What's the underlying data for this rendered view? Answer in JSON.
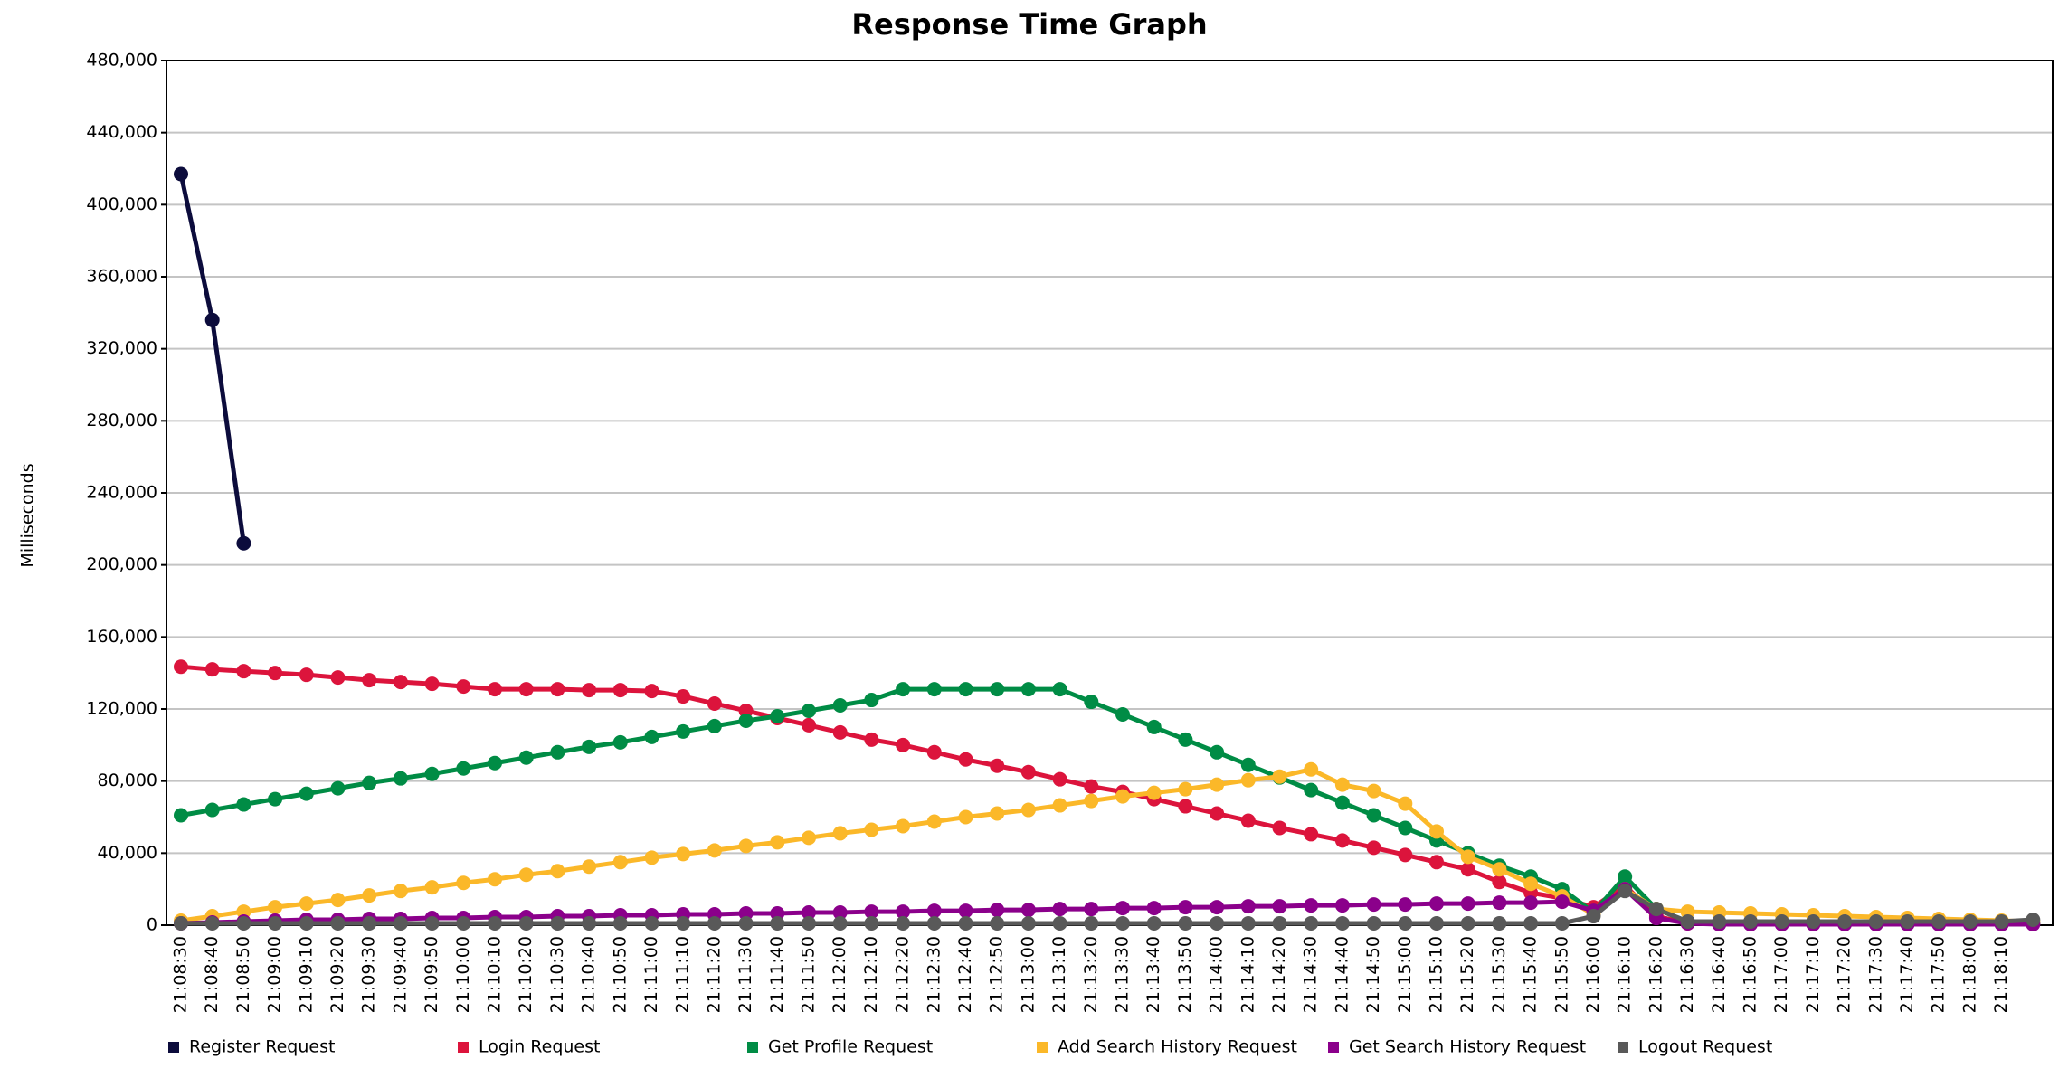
{
  "chart_data": {
    "type": "line",
    "title": "Response Time Graph",
    "y_label": "Milliseconds",
    "categories": [
      "21:08:30",
      "21:08:40",
      "21:08:50",
      "21:09:00",
      "21:09:10",
      "21:09:20",
      "21:09:30",
      "21:09:40",
      "21:09:50",
      "21:10:00",
      "21:10:10",
      "21:10:20",
      "21:10:30",
      "21:10:40",
      "21:10:50",
      "21:11:00",
      "21:11:10",
      "21:11:20",
      "21:11:30",
      "21:11:40",
      "21:11:50",
      "21:12:00",
      "21:12:10",
      "21:12:20",
      "21:12:30",
      "21:12:40",
      "21:12:50",
      "21:13:00",
      "21:13:10",
      "21:13:20",
      "21:13:30",
      "21:13:40",
      "21:13:50",
      "21:14:00",
      "21:14:10",
      "21:14:20",
      "21:14:30",
      "21:14:40",
      "21:14:50",
      "21:15:00",
      "21:15:10",
      "21:15:20",
      "21:15:30",
      "21:15:40",
      "21:15:50",
      "21:16:00",
      "21:16:10",
      "21:16:20",
      "21:16:30",
      "21:16:40",
      "21:16:50",
      "21:17:00",
      "21:17:10",
      "21:17:20",
      "21:17:30",
      "21:17:40",
      "21:17:50",
      "21:18:00",
      "21:18:10",
      null
    ],
    "ylim": [
      0,
      480000
    ],
    "yticks": [
      0,
      {
        "value": 40000,
        "label": "40,000"
      },
      {
        "value": 80000,
        "label": "80,000"
      },
      {
        "value": 120000,
        "label": "120,000"
      },
      {
        "value": 160000,
        "label": "160,000"
      },
      {
        "value": 200000,
        "label": "200,000"
      },
      {
        "value": 240000,
        "label": "240,000"
      },
      {
        "value": 280000,
        "label": "280,000"
      },
      {
        "value": 320000,
        "label": "320,000"
      },
      {
        "value": 360000,
        "label": "360,000"
      },
      {
        "value": 400000,
        "label": "400,000"
      },
      {
        "value": 440000,
        "label": "440,000"
      },
      {
        "value": 480000,
        "label": "480,000"
      }
    ],
    "grid": true,
    "legend": "bottom",
    "series": [
      {
        "name": "Register Request",
        "color": "#0c0c3c",
        "values": [
          417000,
          336000,
          212000,
          null,
          null,
          null,
          null,
          null,
          null,
          null,
          null,
          null,
          null,
          null,
          null,
          null,
          null,
          null,
          null,
          null,
          null,
          null,
          null,
          null,
          null,
          null,
          null,
          null,
          null,
          null,
          null,
          null,
          null,
          null,
          null,
          null,
          null,
          null,
          null,
          null,
          null,
          null,
          null,
          null,
          null,
          null,
          null,
          null,
          null,
          null,
          null,
          null,
          null,
          null,
          null,
          null,
          null,
          null,
          null,
          null
        ]
      },
      {
        "name": "Login Request",
        "color": "#dc143c",
        "values": [
          143500,
          142000,
          141000,
          140000,
          139000,
          137500,
          136000,
          135000,
          134000,
          132500,
          131000,
          131000,
          131000,
          130500,
          130500,
          130000,
          127000,
          123000,
          119000,
          115000,
          111000,
          107000,
          103000,
          100000,
          96000,
          92000,
          88500,
          85000,
          81000,
          77000,
          74000,
          70000,
          66000,
          62000,
          58000,
          54000,
          50500,
          47000,
          43000,
          39000,
          35000,
          31000,
          24000,
          18000,
          15000,
          10000,
          22000,
          5000,
          1000,
          1000,
          1000,
          1000,
          1000,
          1000,
          1000,
          1000,
          1000,
          1000,
          1000,
          1000
        ]
      },
      {
        "name": "Get Profile Request",
        "color": "#008c45",
        "values": [
          61000,
          64000,
          67000,
          70000,
          73000,
          76000,
          79000,
          81500,
          84000,
          87000,
          90000,
          93000,
          96000,
          99000,
          101500,
          104500,
          107500,
          110500,
          113500,
          116000,
          119000,
          122000,
          125000,
          131000,
          131000,
          131000,
          131000,
          131000,
          131000,
          124000,
          117000,
          110000,
          103000,
          96000,
          89000,
          82000,
          75000,
          68000,
          61000,
          54000,
          47000,
          40000,
          33000,
          27000,
          20000,
          7000,
          27000,
          9000,
          2000,
          1000,
          1000,
          1000,
          1000,
          1000,
          1000,
          1000,
          1000,
          1000,
          1000,
          1000
        ]
      },
      {
        "name": "Add Search History Request",
        "color": "#fbb829",
        "values": [
          2500,
          5000,
          7500,
          10000,
          12000,
          14000,
          16500,
          19000,
          21000,
          23500,
          25500,
          28000,
          30000,
          32500,
          35000,
          37500,
          39500,
          41500,
          44000,
          46000,
          48500,
          51000,
          53000,
          55000,
          57500,
          60000,
          62000,
          64000,
          66500,
          69000,
          71500,
          73500,
          75500,
          78000,
          80500,
          82500,
          86500,
          78000,
          74500,
          67500,
          52000,
          38000,
          31000,
          23000,
          16000,
          6000,
          20000,
          9000,
          7500,
          7000,
          6500,
          6000,
          5500,
          5000,
          4500,
          4000,
          3500,
          3000,
          2500,
          2000
        ]
      },
      {
        "name": "Get Search History Request",
        "color": "#8b008b",
        "values": [
          1000,
          1500,
          2000,
          2500,
          3000,
          3000,
          3500,
          3500,
          4000,
          4000,
          4500,
          4500,
          5000,
          5000,
          5500,
          5500,
          6000,
          6000,
          6500,
          6500,
          7000,
          7000,
          7500,
          7500,
          8000,
          8000,
          8500,
          8500,
          9000,
          9000,
          9500,
          9500,
          10000,
          10000,
          10500,
          10500,
          11000,
          11000,
          11500,
          11500,
          12000,
          12000,
          12500,
          12500,
          13000,
          8000,
          20000,
          4000,
          1000,
          500,
          500,
          500,
          500,
          500,
          500,
          500,
          500,
          500,
          500,
          500
        ]
      },
      {
        "name": "Logout Request",
        "color": "#595959",
        "values": [
          1000,
          1000,
          1000,
          1000,
          1000,
          1000,
          1000,
          1000,
          1000,
          1000,
          1000,
          1000,
          1000,
          1000,
          1000,
          1000,
          1000,
          1000,
          1000,
          1000,
          1000,
          1000,
          1000,
          1000,
          1000,
          1000,
          1000,
          1000,
          1000,
          1000,
          1000,
          1000,
          1000,
          1000,
          1000,
          1000,
          1000,
          1000,
          1000,
          1000,
          1000,
          1000,
          1000,
          1000,
          1000,
          5000,
          19000,
          9000,
          2000,
          2000,
          2000,
          2000,
          2000,
          2000,
          2000,
          2000,
          2000,
          2000,
          2000,
          3000
        ]
      }
    ]
  }
}
